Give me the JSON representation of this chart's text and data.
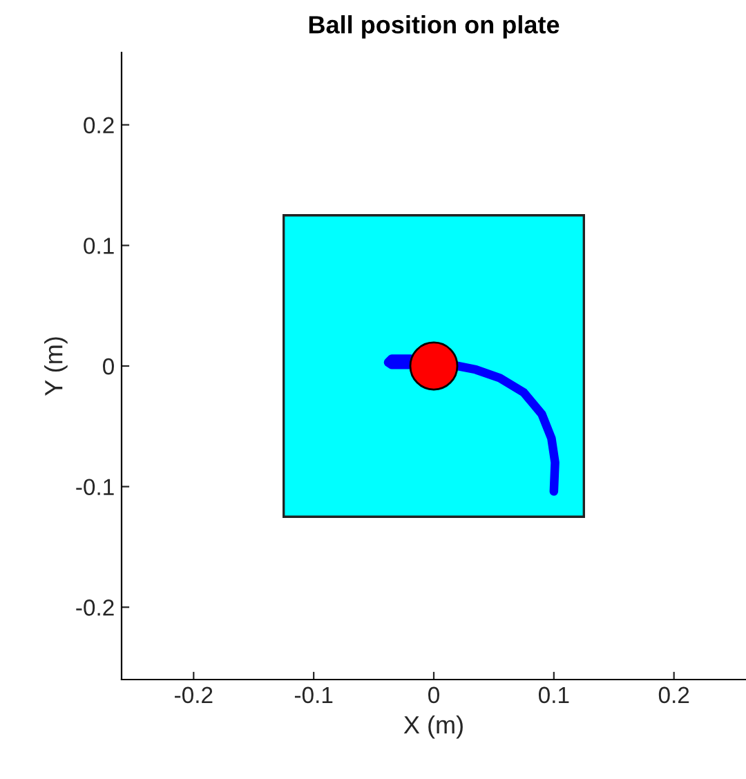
{
  "chart_data": {
    "type": "line",
    "title": "Ball position on plate",
    "xlabel": "X (m)",
    "ylabel": "Y (m)",
    "xlim": [
      -0.26,
      0.26
    ],
    "ylim": [
      -0.26,
      0.26
    ],
    "xticks": [
      -0.2,
      -0.1,
      0,
      0.1,
      0.2
    ],
    "yticks": [
      -0.2,
      -0.1,
      0,
      0.1,
      0.2
    ],
    "grid": false,
    "legend": false,
    "series": [
      {
        "type": "area",
        "color": "#00ffff",
        "x": [
          -0.125,
          -0.125,
          0.125,
          0.125,
          -0.125
        ],
        "values": [
          -0.125,
          0.125,
          0.125,
          -0.125,
          -0.125
        ]
      },
      {
        "color": "#0000ff",
        "x": [
          0.1,
          0.101,
          0.098,
          0.09,
          0.075,
          0.055,
          0.035,
          0.02,
          -0.02,
          -0.035,
          -0.038,
          -0.035,
          -0.02
        ],
        "values": [
          -0.104,
          -0.08,
          -0.06,
          -0.04,
          -0.022,
          -0.01,
          -0.003,
          0.0,
          0.006,
          0.006,
          0.003,
          0.001,
          0.001
        ]
      },
      {
        "type": "scatter",
        "color": "#ff0000",
        "marker": "circle",
        "x": [
          0
        ],
        "values": [
          0
        ]
      }
    ]
  }
}
